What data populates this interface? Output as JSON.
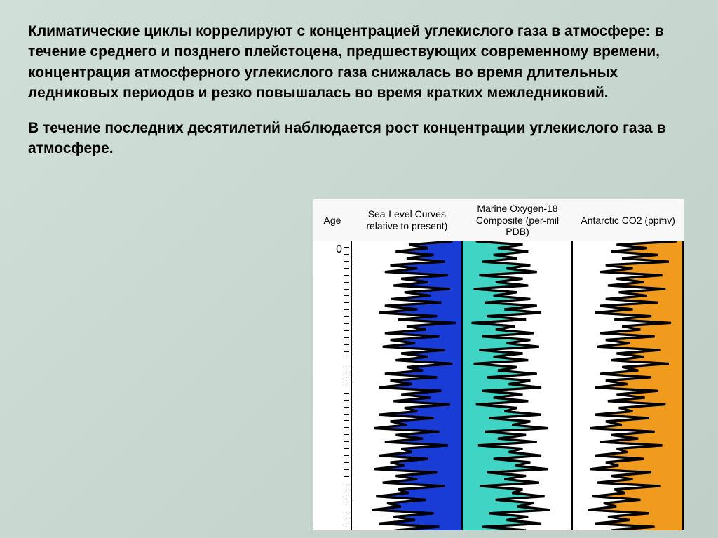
{
  "text": {
    "para1": "Климатические циклы коррелируют с концентрацией углекислого газа в атмосфере: в течение среднего и позднего плейстоцена, предшествующих современному времени, концентрация атмосферного углекислого газа снижалась во время длительных ледниковых периодов и резко повышалась во время кратких межледниковий.",
    "para2": "В течение последних десятилетий наблюдается рост концентрации углекислого газа в атмосфере."
  },
  "chart": {
    "headers": {
      "age": "Age",
      "sealevel": "Sea-Level Curves relative to present)",
      "oxygen": "Marine Oxygen-18 Composite (per-mil PDB)",
      "co2": "Antarctic CO2 (ppmv)"
    },
    "age_zero": "0",
    "colors": {
      "sealevel_fill": "#1a3cd6",
      "oxygen_fill": "#3fd4c3",
      "co2_fill": "#f09b1e",
      "stroke": "#000000",
      "bg": "#ffffff"
    },
    "sealevel": {
      "fill_side": "right",
      "values": [
        0.92,
        0.52,
        0.7,
        0.4,
        0.75,
        0.5,
        0.85,
        0.35,
        0.6,
        0.3,
        0.88,
        0.45,
        0.7,
        0.38,
        0.9,
        0.48,
        0.72,
        0.36,
        0.82,
        0.3,
        0.6,
        0.25,
        0.78,
        0.42,
        0.95,
        0.5,
        0.68,
        0.3,
        0.8,
        0.35,
        0.58,
        0.28,
        0.85,
        0.45,
        0.7,
        0.4,
        0.92,
        0.5,
        0.65,
        0.3,
        0.78,
        0.35,
        0.55,
        0.25,
        0.82,
        0.45,
        0.72,
        0.38,
        0.9,
        0.48,
        0.6,
        0.25,
        0.75,
        0.35,
        0.5,
        0.2,
        0.8,
        0.4,
        0.65,
        0.3,
        0.88,
        0.45,
        0.55,
        0.25,
        0.7,
        0.35,
        0.48,
        0.2,
        0.78,
        0.4,
        0.6,
        0.28,
        0.85,
        0.42,
        0.52,
        0.22,
        0.68,
        0.32,
        0.45,
        0.18,
        0.75,
        0.38,
        0.58,
        0.25,
        0.8,
        0.4
      ]
    },
    "oxygen": {
      "fill_side": "left",
      "values": [
        0.12,
        0.55,
        0.32,
        0.6,
        0.28,
        0.5,
        0.18,
        0.62,
        0.4,
        0.68,
        0.15,
        0.55,
        0.3,
        0.6,
        0.1,
        0.5,
        0.28,
        0.62,
        0.2,
        0.68,
        0.38,
        0.72,
        0.22,
        0.58,
        0.08,
        0.48,
        0.3,
        0.65,
        0.18,
        0.62,
        0.4,
        0.7,
        0.15,
        0.55,
        0.28,
        0.6,
        0.1,
        0.5,
        0.32,
        0.68,
        0.22,
        0.62,
        0.42,
        0.72,
        0.18,
        0.55,
        0.28,
        0.6,
        0.12,
        0.5,
        0.38,
        0.72,
        0.24,
        0.62,
        0.45,
        0.78,
        0.2,
        0.58,
        0.32,
        0.68,
        0.14,
        0.55,
        0.42,
        0.72,
        0.28,
        0.62,
        0.48,
        0.78,
        0.22,
        0.58,
        0.38,
        0.7,
        0.16,
        0.55,
        0.45,
        0.75,
        0.3,
        0.65,
        0.5,
        0.8,
        0.24,
        0.6,
        0.4,
        0.72,
        0.18,
        0.58
      ]
    },
    "co2": {
      "fill_side": "right",
      "values": [
        0.95,
        0.4,
        0.68,
        0.35,
        0.78,
        0.45,
        0.88,
        0.3,
        0.55,
        0.25,
        0.82,
        0.4,
        0.65,
        0.32,
        0.85,
        0.42,
        0.68,
        0.3,
        0.78,
        0.25,
        0.55,
        0.2,
        0.72,
        0.38,
        0.9,
        0.45,
        0.62,
        0.25,
        0.75,
        0.3,
        0.52,
        0.22,
        0.8,
        0.4,
        0.65,
        0.35,
        0.88,
        0.45,
        0.6,
        0.25,
        0.72,
        0.3,
        0.5,
        0.2,
        0.78,
        0.4,
        0.66,
        0.32,
        0.85,
        0.42,
        0.55,
        0.2,
        0.7,
        0.3,
        0.45,
        0.16,
        0.75,
        0.35,
        0.6,
        0.25,
        0.82,
        0.4,
        0.5,
        0.2,
        0.65,
        0.3,
        0.42,
        0.16,
        0.72,
        0.35,
        0.55,
        0.22,
        0.8,
        0.38,
        0.48,
        0.18,
        0.62,
        0.28,
        0.4,
        0.14,
        0.7,
        0.32,
        0.52,
        0.2,
        0.75,
        0.35
      ]
    }
  }
}
